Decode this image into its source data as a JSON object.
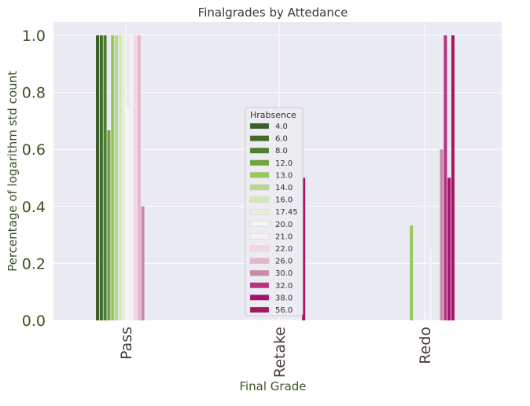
{
  "chart_data": {
    "type": "bar",
    "title": "Finalgrades by Attedance",
    "xlabel": "Final Grade",
    "ylabel": "Percentage of logarithm std count",
    "categories": [
      "Pass",
      "Retake",
      "Redo"
    ],
    "ylim": [
      0,
      1.0
    ],
    "yticks": [
      "0.0",
      "0.2",
      "0.4",
      "0.6",
      "0.8",
      "1.0"
    ],
    "grid": true,
    "legend": {
      "title": "Hrabsence",
      "placement": "center"
    },
    "series": [
      {
        "name": "4.0",
        "color": "#3b5f2a",
        "values": [
          1.0,
          0,
          0
        ]
      },
      {
        "name": "6.0",
        "color": "#3f6a2b",
        "values": [
          1.0,
          0,
          0
        ]
      },
      {
        "name": "8.0",
        "color": "#4c7f2e",
        "values": [
          1.0,
          0,
          0
        ]
      },
      {
        "name": "12.0",
        "color": "#6fa63a",
        "values": [
          0.667,
          0,
          0
        ]
      },
      {
        "name": "13.0",
        "color": "#95c95a",
        "values": [
          1.0,
          0,
          0.333
        ]
      },
      {
        "name": "14.0",
        "color": "#b6d98a",
        "values": [
          1.0,
          0,
          0
        ]
      },
      {
        "name": "16.0",
        "color": "#d3e8b5",
        "values": [
          1.0,
          0,
          0
        ]
      },
      {
        "name": "17.45",
        "color": "#e7f1d7",
        "values": [
          1.0,
          0,
          0
        ]
      },
      {
        "name": "20.0",
        "color": "#f3f5ef",
        "values": [
          0.75,
          0,
          0
        ]
      },
      {
        "name": "21.0",
        "color": "#f6f0f3",
        "values": [
          1.0,
          0,
          0.25
        ]
      },
      {
        "name": "22.0",
        "color": "#f0d7e2",
        "values": [
          1.0,
          0,
          0
        ]
      },
      {
        "name": "26.0",
        "color": "#e6b5cb",
        "values": [
          1.0,
          0,
          0
        ]
      },
      {
        "name": "30.0",
        "color": "#c98aa8",
        "values": [
          0.4,
          0,
          0.6
        ]
      },
      {
        "name": "32.0",
        "color": "#b8327f",
        "values": [
          0,
          0,
          1.0
        ]
      },
      {
        "name": "38.0",
        "color": "#a6106e",
        "values": [
          0,
          0.5,
          0.5
        ]
      },
      {
        "name": "56.0",
        "color": "#a3185f",
        "values": [
          0,
          0,
          1.0
        ]
      }
    ]
  }
}
